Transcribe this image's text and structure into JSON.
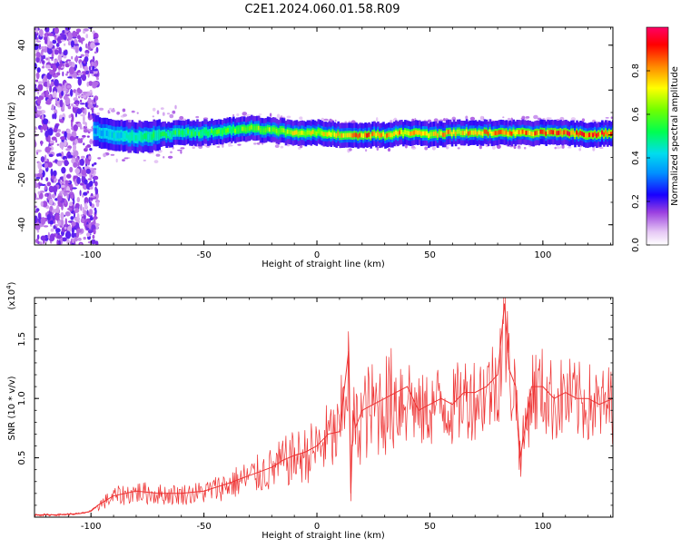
{
  "title": "C2E1.2024.060.01.58.R09",
  "chart_data": [
    {
      "type": "heatmap",
      "xlabel": "Height of straight line (km)",
      "ylabel": "Frequency (Hz)",
      "xlim": [
        -125,
        131
      ],
      "ylim": [
        -49,
        48
      ],
      "xticks": [
        -100,
        -50,
        0,
        50,
        100
      ],
      "xtick_labels": [
        "-100",
        "-50",
        "0",
        "50",
        "100"
      ],
      "yticks": [
        -40,
        -20,
        0,
        20,
        40
      ],
      "ytick_labels": [
        "-40",
        "-20",
        "0",
        "20",
        "40"
      ],
      "colorbar": {
        "label": "Normalized spectral amplitude",
        "range": [
          0.0,
          1.0
        ],
        "ticks": [
          0.0,
          0.2,
          0.4,
          0.6,
          0.8
        ],
        "tick_labels": [
          "0.0",
          "0.2",
          "0.4",
          "0.6",
          "0.8"
        ]
      },
      "ridge": {
        "x": [
          -100,
          -90,
          -80,
          -70,
          -60,
          -50,
          -40,
          -30,
          -20,
          -10,
          0,
          10,
          20,
          30,
          40,
          50,
          60,
          70,
          80,
          90,
          100,
          110,
          120,
          130
        ],
        "center_hz": [
          2,
          0,
          -1,
          0,
          1,
          1,
          2,
          3,
          2,
          1,
          1,
          0,
          0,
          0,
          1,
          0,
          1,
          1,
          1,
          1,
          1,
          1,
          0,
          1
        ],
        "peak_amplitude": [
          0.35,
          0.45,
          0.5,
          0.55,
          0.55,
          0.6,
          0.6,
          0.7,
          0.7,
          0.75,
          0.75,
          0.8,
          0.9,
          0.85,
          0.85,
          0.8,
          0.85,
          0.85,
          0.9,
          0.9,
          0.9,
          0.95,
          0.95,
          0.95
        ]
      }
    },
    {
      "type": "line",
      "xlabel": "Height of straight line (km)",
      "ylabel": "SNR (10 * v/v)",
      "scale_label": "(x10",
      "scale_exp": "4",
      "xlim": [
        -125,
        131
      ],
      "ylim": [
        0,
        1.85
      ],
      "xticks": [
        -100,
        -50,
        0,
        50,
        100
      ],
      "xtick_labels": [
        "-100",
        "-50",
        "0",
        "50",
        "100"
      ],
      "yticks": [
        0.5,
        1.0,
        1.5
      ],
      "ytick_labels": [
        "0.5",
        "1.0",
        "1.5"
      ],
      "series": [
        {
          "name": "SNR",
          "color": "#ee3333",
          "x": [
            -125,
            -115,
            -105,
            -100,
            -97,
            -90,
            -80,
            -70,
            -60,
            -50,
            -40,
            -30,
            -20,
            -15,
            -10,
            -5,
            0,
            5,
            10,
            14,
            15,
            16,
            17,
            20,
            25,
            30,
            35,
            40,
            45,
            50,
            55,
            60,
            65,
            70,
            75,
            80,
            83,
            85,
            88,
            90,
            95,
            100,
            105,
            110,
            115,
            120,
            125,
            131
          ],
          "values": [
            0.02,
            0.02,
            0.03,
            0.05,
            0.1,
            0.18,
            0.22,
            0.2,
            0.2,
            0.22,
            0.28,
            0.35,
            0.42,
            0.48,
            0.52,
            0.55,
            0.6,
            0.7,
            0.72,
            1.4,
            0.2,
            0.9,
            0.75,
            0.9,
            0.95,
            1.0,
            1.05,
            1.1,
            0.9,
            0.95,
            1.0,
            0.95,
            1.05,
            1.05,
            1.1,
            1.2,
            1.8,
            1.25,
            1.1,
            0.5,
            1.1,
            1.1,
            1.0,
            1.05,
            1.0,
            1.0,
            0.95,
            1.0
          ]
        }
      ]
    }
  ]
}
